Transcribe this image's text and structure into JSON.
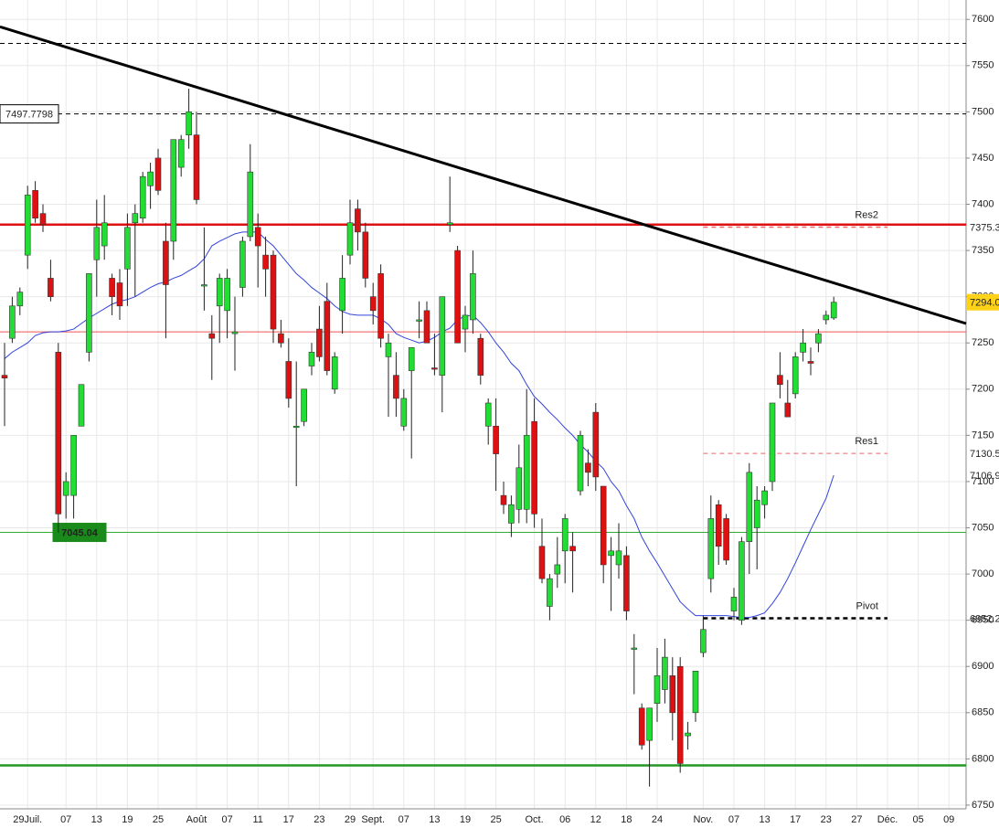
{
  "chart_data": {
    "type": "candlestick",
    "categories": [
      null,
      null,
      null,
      "29Juil.",
      null,
      null,
      null,
      null,
      "07",
      null,
      null,
      null,
      "13",
      null,
      null,
      null,
      "19",
      null,
      null,
      null,
      "25",
      null,
      null,
      null,
      null,
      "Août",
      null,
      null,
      null,
      "07",
      null,
      null,
      null,
      "11",
      null,
      null,
      null,
      "17",
      null,
      null,
      null,
      "23",
      null,
      null,
      null,
      "29",
      null,
      null,
      "Sept.",
      null,
      null,
      null,
      "07",
      null,
      null,
      null,
      "13",
      null,
      null,
      null,
      "19",
      null,
      null,
      null,
      "25",
      null,
      null,
      null,
      null,
      "Oct.",
      null,
      null,
      null,
      "06",
      null,
      null,
      null,
      "12",
      null,
      null,
      null,
      "18",
      null,
      null,
      null,
      "24",
      null,
      null,
      null,
      null,
      null,
      "Nov.",
      null,
      null,
      null,
      "07",
      null,
      null,
      null,
      "13",
      null,
      null,
      null,
      "17",
      null,
      null,
      null,
      "23",
      null,
      null,
      null,
      "27",
      null,
      null,
      null,
      "Déc.",
      null,
      null,
      null,
      "05",
      null,
      null,
      null,
      "09"
    ],
    "open": [
      7215,
      7255,
      7290,
      7345,
      7415,
      7390,
      7320,
      7240,
      7085,
      7085,
      7160,
      7240,
      7340,
      7355,
      7320,
      7315,
      7330,
      7380,
      7385,
      7420,
      7450,
      7360,
      7360,
      7440,
      7475,
      7475,
      7313,
      7260,
      7290,
      7285,
      7260,
      7310,
      7365,
      7375,
      7345,
      7345,
      7260,
      7230,
      7160,
      7165,
      7225,
      7265,
      7295,
      7200,
      7285,
      7345,
      7395,
      7370,
      7300,
      7325,
      7235,
      7215,
      7160,
      7220,
      7275,
      7285,
      7223,
      7215,
      7378,
      7350,
      7265,
      7275,
      7255,
      7160,
      7160,
      7085,
      7055,
      7070,
      7070,
      7165,
      7030,
      6965,
      7000,
      7025,
      7030,
      7090,
      7120,
      7175,
      7095,
      7020,
      7010,
      7020,
      6920,
      6855,
      6820,
      6860,
      6875,
      6890,
      6900,
      6825,
      6850,
      6915,
      6995,
      7075,
      7060,
      6960,
      6950,
      7035,
      7050,
      7075,
      7100,
      7215,
      7185,
      7195,
      7240,
      7230,
      7250,
      7275,
      7277,
      null,
      null,
      null,
      null,
      null,
      null,
      null,
      null,
      null,
      null,
      null,
      null,
      null,
      null,
      null
    ],
    "high": [
      7250,
      7300,
      7310,
      7420,
      7425,
      7400,
      7340,
      7250,
      7110,
      7150,
      7200,
      7320,
      7405,
      7410,
      7325,
      7330,
      7390,
      7400,
      7435,
      7445,
      7460,
      7380,
      7470,
      7475,
      7525,
      7500,
      7375,
      7280,
      7325,
      7330,
      7300,
      7365,
      7465,
      7390,
      7365,
      7350,
      7275,
      7255,
      7230,
      7200,
      7250,
      7290,
      7315,
      7240,
      7345,
      7405,
      7405,
      7380,
      7315,
      7335,
      7260,
      7240,
      7200,
      7240,
      7295,
      7295,
      7260,
      7300,
      7430,
      7355,
      7290,
      7350,
      7260,
      7190,
      7190,
      7100,
      7085,
      7140,
      7200,
      7190,
      7060,
      7000,
      7040,
      7065,
      7045,
      7155,
      7135,
      7185,
      7095,
      7040,
      7055,
      7030,
      6935,
      6860,
      6855,
      6920,
      6930,
      6910,
      6910,
      6840,
      6895,
      6955,
      7085,
      7080,
      7065,
      6985,
      7040,
      7120,
      7095,
      7095,
      7185,
      7240,
      7210,
      7240,
      7265,
      7245,
      7265,
      7285,
      7300,
      null,
      null,
      null,
      null,
      null,
      null,
      null,
      null,
      null,
      null,
      null,
      null,
      null,
      null,
      null
    ],
    "low": [
      7160,
      7250,
      7280,
      7330,
      7380,
      7370,
      7295,
      7045,
      7060,
      7060,
      7160,
      7230,
      7300,
      7340,
      7280,
      7275,
      7290,
      7300,
      7380,
      7395,
      7410,
      7255,
      7340,
      7430,
      7460,
      7400,
      7285,
      7210,
      7250,
      7255,
      7220,
      7300,
      7360,
      7310,
      7300,
      7250,
      7245,
      7180,
      7095,
      7160,
      7215,
      7230,
      7215,
      7195,
      7260,
      7335,
      7350,
      7310,
      7270,
      7245,
      7170,
      7170,
      7155,
      7125,
      7255,
      7250,
      7215,
      7175,
      7370,
      7250,
      7240,
      7260,
      7205,
      7140,
      7090,
      7065,
      7040,
      7055,
      7055,
      7050,
      6990,
      6950,
      6985,
      6990,
      6980,
      7085,
      7095,
      7090,
      6990,
      6960,
      6995,
      6950,
      6870,
      6810,
      6770,
      6840,
      6860,
      6820,
      6785,
      6810,
      6840,
      6910,
      6980,
      7010,
      7010,
      6950,
      6945,
      7000,
      7005,
      7060,
      7090,
      7190,
      7170,
      7190,
      7230,
      7215,
      7240,
      7270,
      7275,
      null,
      null,
      null,
      null,
      null,
      null,
      null,
      null,
      null,
      null,
      null,
      null,
      null,
      null,
      null
    ],
    "close": [
      7212,
      7290,
      7305,
      7410,
      7385,
      7378,
      7300,
      7065,
      7100,
      7150,
      7205,
      7325,
      7375,
      7380,
      7300,
      7290,
      7375,
      7390,
      7430,
      7435,
      7415,
      7313,
      7470,
      7470,
      7500,
      7405,
      7313,
      7255,
      7320,
      7320,
      7262,
      7360,
      7435,
      7355,
      7330,
      7265,
      7250,
      7190,
      7160,
      7200,
      7240,
      7235,
      7220,
      7235,
      7320,
      7380,
      7370,
      7320,
      7285,
      7255,
      7250,
      7190,
      7190,
      7245,
      7275,
      7250,
      7222,
      7300,
      7380,
      7250,
      7280,
      7325,
      7215,
      7185,
      7130,
      7075,
      7075,
      7115,
      7150,
      7065,
      6995,
      6995,
      7010,
      7060,
      7025,
      7150,
      7110,
      7105,
      7010,
      7025,
      7025,
      6960,
      6920,
      6815,
      6855,
      6890,
      6910,
      6850,
      6795,
      6828,
      6895,
      6940,
      7060,
      7030,
      7015,
      6975,
      7035,
      7110,
      7080,
      7090,
      7185,
      7205,
      7170,
      7235,
      7250,
      7228,
      7260,
      7280,
      7294,
      null,
      null,
      null,
      null,
      null,
      null,
      null,
      null,
      null,
      null,
      null,
      null,
      null,
      null,
      null
    ],
    "up_color": "#22dd33",
    "down_color": "#dd1111",
    "last_label": "7294.0",
    "ma": {
      "color": "#3344dd",
      "value_label": "7106.9",
      "values": [
        7233,
        7240,
        7245,
        7250,
        7258,
        7261,
        7262,
        7262,
        7263,
        7265,
        7271,
        7277,
        7282,
        7287,
        7292,
        7295,
        7297,
        7300,
        7305,
        7310,
        7314,
        7316,
        7320,
        7323,
        7328,
        7333,
        7341,
        7355,
        7360,
        7364,
        7368,
        7370,
        7370,
        7370,
        7362,
        7355,
        7345,
        7335,
        7325,
        7318,
        7310,
        7304,
        7298,
        7290,
        7284,
        7281,
        7280,
        7280,
        7280,
        7276,
        7270,
        7260,
        7256,
        7253,
        7250,
        7252,
        7256,
        7262,
        7266,
        7275,
        7279,
        7280,
        7272,
        7262,
        7250,
        7240,
        7228,
        7220,
        7205,
        7192,
        7184,
        7175,
        7167,
        7158,
        7150,
        7140,
        7132,
        7122,
        7114,
        7100,
        7090,
        7074,
        7060,
        7040,
        7025,
        7012,
        6998,
        6984,
        6970,
        6962,
        6955,
        6955,
        6955,
        6955,
        6955,
        6954,
        6953,
        6953,
        6955,
        6958,
        6968,
        6980,
        6995,
        7012,
        7030,
        7048,
        7065,
        7082,
        7106.9,
        null,
        null,
        null,
        null,
        null,
        null,
        null,
        null,
        null,
        null,
        null,
        null,
        null,
        null,
        null
      ]
    },
    "trendline": {
      "color": "#000000",
      "values": [
        7592,
        7271
      ]
    },
    "levels": [
      {
        "value": 7574,
        "color": "#000000",
        "dashed": true,
        "width": 1
      },
      {
        "value": 7497.7798,
        "color": "#000000",
        "dashed": true,
        "width": 1,
        "box_label": "7497.7798",
        "box": "outline"
      },
      {
        "value": 7378,
        "color": "#dd1111",
        "dashed": false,
        "width": 2.5
      },
      {
        "value": 7262,
        "color": "#ee5555",
        "dashed": false,
        "width": 1
      },
      {
        "value": 7045.04,
        "color": "#33aa33",
        "dashed": false,
        "width": 1,
        "box_label": "7045.04",
        "box": "filled"
      },
      {
        "value": 6793,
        "color": "#229922",
        "dashed": false,
        "width": 2.5
      },
      {
        "value": 7375.3,
        "color": "#ee6666",
        "dashed": true,
        "width": 1.5,
        "from": 91,
        "to": 115,
        "tag": "Res2",
        "price_label": "7375.3"
      },
      {
        "value": 7130.5,
        "color": "#ee6666",
        "dashed": true,
        "width": 1,
        "from": 91,
        "to": 115,
        "tag": "Res1",
        "price_label": "7130.5"
      },
      {
        "value": 6952.2,
        "color": "#000000",
        "dashed": true,
        "width": 2.5,
        "from": 91,
        "to": 115,
        "tag": "Pivot",
        "price_label": "6952.2"
      }
    ],
    "ylim": [
      6746,
      7621
    ],
    "yticks": [
      6750,
      6800,
      6850,
      6900,
      6950,
      7000,
      7050,
      7100,
      7150,
      7200,
      7250,
      7300,
      7350,
      7400,
      7450,
      7500,
      7550,
      7600
    ],
    "grid": true
  }
}
